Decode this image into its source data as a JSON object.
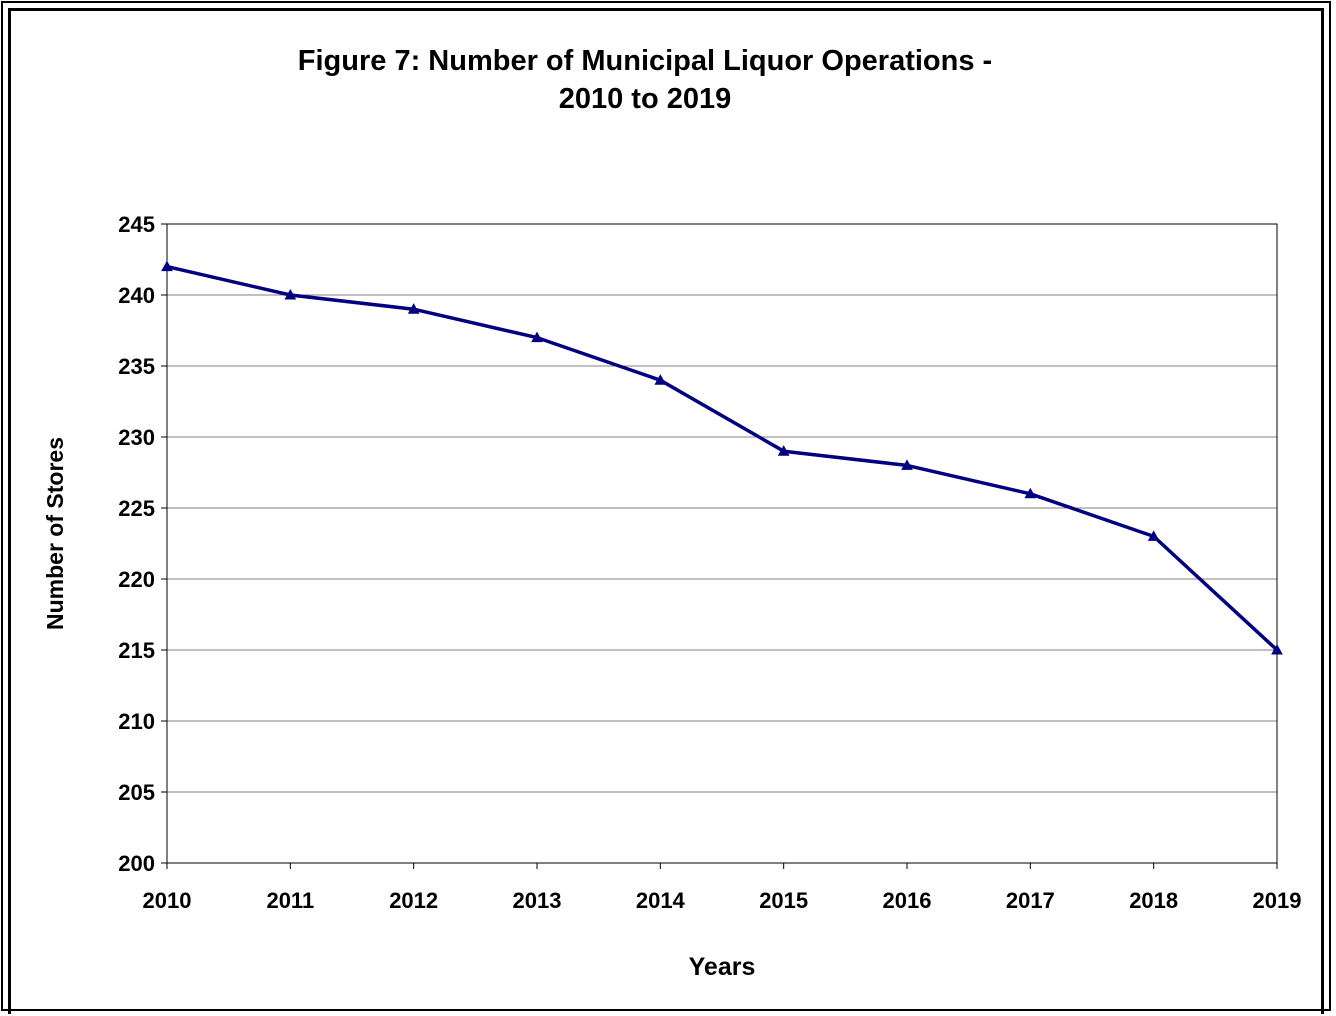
{
  "chart_data": {
    "type": "line",
    "title": "Figure 7:  Number of Municipal Liquor Operations -\n2010 to 2019",
    "xlabel": "Years",
    "ylabel": "Number of Stores",
    "categories": [
      "2010",
      "2011",
      "2012",
      "2013",
      "2014",
      "2015",
      "2016",
      "2017",
      "2018",
      "2019"
    ],
    "series": [
      {
        "values": [
          242,
          240,
          239,
          237,
          234,
          229,
          228,
          226,
          223,
          215
        ],
        "color": "#000080",
        "marker": "triangle"
      }
    ],
    "ylim": [
      200,
      245
    ],
    "yticks": [
      "200",
      "205",
      "210",
      "215",
      "220",
      "225",
      "230",
      "235",
      "240",
      "245"
    ],
    "grid": "horizontal",
    "legend": "none"
  },
  "colors": {
    "line": "#000080",
    "gridline": "#808080",
    "axis": "#000000",
    "frame": "#000000"
  }
}
